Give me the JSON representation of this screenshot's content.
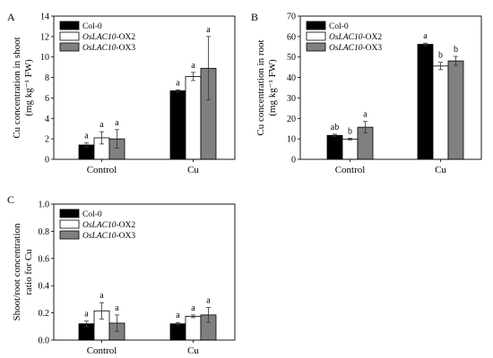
{
  "chart_data": [
    {
      "panel": "A",
      "type": "bar",
      "ylabel_line1": "Cu concentration in shoot",
      "ylabel_line2": "(mg kg⁻¹ FW)",
      "ylim": [
        0,
        14
      ],
      "ytick_step": 2,
      "ytick_labels": [
        "0",
        "2",
        "4",
        "6",
        "8",
        "10",
        "12",
        "14"
      ],
      "categories": [
        "Control",
        "Cu"
      ],
      "legend_position": "top-left",
      "series": [
        {
          "name": "Col-0",
          "color": "#000000",
          "values": [
            1.4,
            6.7
          ],
          "errors": [
            0.2,
            0.1
          ],
          "letters": [
            "a",
            "a"
          ]
        },
        {
          "name": "OsLAC10-OX2",
          "color": "#ffffff",
          "values": [
            2.1,
            8.1
          ],
          "errors": [
            0.6,
            0.4
          ],
          "letters": [
            "a",
            "a"
          ]
        },
        {
          "name": "OsLAC10-OX3",
          "color": "#808080",
          "values": [
            2.0,
            8.9
          ],
          "errors": [
            0.9,
            3.1
          ],
          "letters": [
            "a",
            "a"
          ]
        }
      ]
    },
    {
      "panel": "B",
      "type": "bar",
      "ylabel_line1": "Cu concentration in root",
      "ylabel_line2": "(mg kg⁻¹ FW)",
      "ylim": [
        0,
        70
      ],
      "ytick_step": 10,
      "ytick_labels": [
        "0",
        "10",
        "20",
        "30",
        "40",
        "50",
        "60",
        "70"
      ],
      "categories": [
        "Control",
        "Cu"
      ],
      "legend_position": "top-left",
      "series": [
        {
          "name": "Col-0",
          "color": "#000000",
          "values": [
            11.7,
            56.2
          ],
          "errors": [
            0.6,
            0.6
          ],
          "letters": [
            "ab",
            "a"
          ]
        },
        {
          "name": "OsLAC10-OX2",
          "color": "#ffffff",
          "values": [
            9.9,
            45.6
          ],
          "errors": [
            0.4,
            1.8
          ],
          "letters": [
            "b",
            "b"
          ]
        },
        {
          "name": "OsLAC10-OX3",
          "color": "#808080",
          "values": [
            15.7,
            48.1
          ],
          "errors": [
            2.8,
            2.2
          ],
          "letters": [
            "a",
            "b"
          ]
        }
      ]
    },
    {
      "panel": "C",
      "type": "bar",
      "ylabel_line1": "Shoot/root concentration",
      "ylabel_line2": "ratio for Cu",
      "ylim": [
        0,
        1.0
      ],
      "ytick_step": 0.2,
      "ytick_labels": [
        "0.0",
        "0.2",
        "0.4",
        "0.6",
        "0.8",
        "1.0"
      ],
      "categories": [
        "Control",
        "Cu"
      ],
      "legend_position": "top-left",
      "series": [
        {
          "name": "Col-0",
          "color": "#000000",
          "values": [
            0.12,
            0.12
          ],
          "errors": [
            0.02,
            0.01
          ],
          "letters": [
            "a",
            "a"
          ]
        },
        {
          "name": "OsLAC10-OX2",
          "color": "#ffffff",
          "values": [
            0.215,
            0.175
          ],
          "errors": [
            0.06,
            0.01
          ],
          "letters": [
            "a",
            "a"
          ]
        },
        {
          "name": "OsLAC10-OX3",
          "color": "#808080",
          "values": [
            0.125,
            0.185
          ],
          "errors": [
            0.06,
            0.055
          ],
          "letters": [
            "a",
            "a"
          ]
        }
      ]
    }
  ]
}
